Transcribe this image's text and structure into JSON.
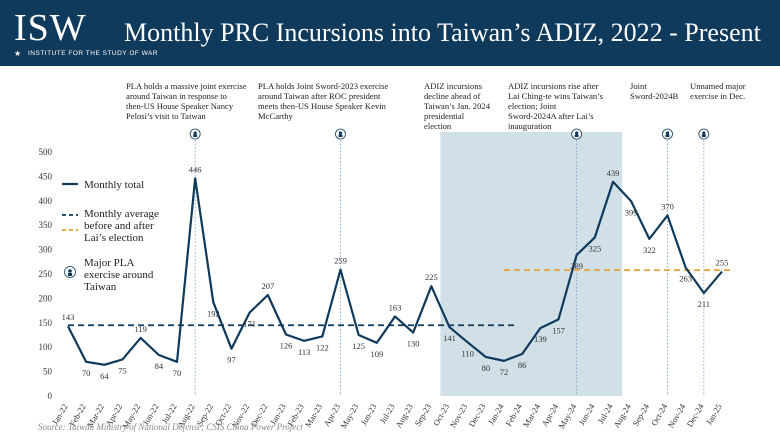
{
  "header": {
    "logo_text": "ISW",
    "logo_subtext": "INSTITUTE FOR THE STUDY OF WAR",
    "title": "Monthly PRC Incursions into Taiwan’s ADIZ, 2022 - Present"
  },
  "source": "Source: Taiwan Ministry of National Defense; CSIS China Power Project",
  "colors": {
    "header_bg": "#0f3a5c",
    "line": "#0f3a5c",
    "avg_before": "#0f3a5c",
    "avg_after": "#e8a33a",
    "shade": "#c9d9e3",
    "event_line": "#6fa0cf"
  },
  "legend": {
    "monthly_total": "Monthly total",
    "monthly_average": "Monthly average before and after Lai’s election",
    "major_exercise": "Major PLA exercise around Taiwan",
    "exercise_icon": "pla-exercise-marker-icon"
  },
  "annotations": [
    {
      "text": "PLA holds a massive joint exercise around Taiwan in response to then-US House Speaker Nancy Pelosi’s visit to Taiwan",
      "month": "Aug-22"
    },
    {
      "text": "PLA holds Joint Sword-2023 exercise around Taiwan after ROC president meets then-US House Speaker Kevin McCarthy",
      "month": "Apr-23"
    },
    {
      "text": "ADIZ incursions decline ahead of Taiwan’s Jan. 2024 presidential election",
      "month": "Oct-23"
    },
    {
      "text": "ADIZ incursions rise after Lai Ching-te wins Taiwan’s election; Joint Sword-2024A after Lai’s inauguration",
      "month": "May-24"
    },
    {
      "text": "Joint Sword-2024B",
      "month": "Oct-24"
    },
    {
      "text": "Unnamed major exercise in Dec.",
      "month": "Dec-24"
    }
  ],
  "chart_data": {
    "type": "line",
    "title": "Monthly PRC Incursions into Taiwan’s ADIZ, 2022 - Present",
    "categories": [
      "Jan-22",
      "Feb-22",
      "Mar-22",
      "Apr-22",
      "May-22",
      "Jun-22",
      "Jul-22",
      "Aug-22",
      "Sep-22",
      "Oct-22",
      "Nov-22",
      "Dec-22",
      "Jan-23",
      "Feb-23",
      "Mar-23",
      "Apr-23",
      "May-23",
      "Jun-23",
      "Jul-23",
      "Aug-23",
      "Sep-23",
      "Oct-23",
      "Nov-23",
      "Dec-23",
      "Jan-24",
      "Feb-24",
      "Mar-24",
      "Apr-24",
      "May-24",
      "Jun-24",
      "Jul-24",
      "Aug-24",
      "Sep-24",
      "Oct-24",
      "Nov-24",
      "Dec-24",
      "Jan-25"
    ],
    "series": [
      {
        "name": "Monthly total",
        "values": [
          143,
          70,
          64,
          75,
          119,
          84,
          70,
          446,
          192,
          97,
          171,
          207,
          126,
          113,
          122,
          259,
          125,
          109,
          163,
          130,
          225,
          141,
          110,
          80,
          72,
          86,
          139,
          157,
          289,
          325,
          439,
          399,
          322,
          370,
          263,
          211,
          255
        ]
      }
    ],
    "averages": [
      {
        "name": "Monthly average before and after Lai’s election",
        "segment": "before",
        "from": "Jan-22",
        "to": "Jan-24",
        "value": 145
      },
      {
        "name": "Monthly average before and after Lai’s election",
        "segment": "after",
        "from": "Jan-24",
        "to": "Jan-25",
        "value": 258
      }
    ],
    "shaded_ranges": [
      [
        "Oct-23",
        "Jan-24"
      ],
      [
        "Feb-24",
        "Jul-24"
      ]
    ],
    "exercise_months": [
      "Aug-22",
      "Apr-23",
      "May-24",
      "Oct-24",
      "Dec-24"
    ],
    "ylim": [
      0,
      500
    ],
    "yticks": [
      0,
      50,
      100,
      150,
      200,
      250,
      300,
      350,
      400,
      450,
      500
    ],
    "grid": false,
    "legend_position": "left"
  }
}
